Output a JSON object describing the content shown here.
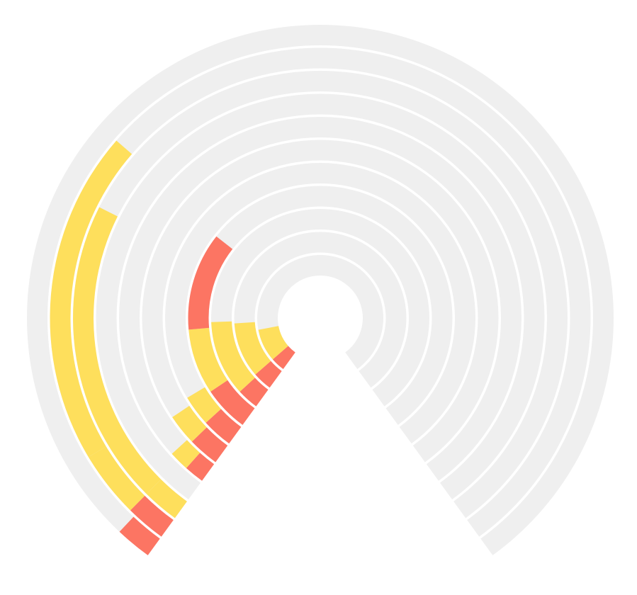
{
  "chart_data": {
    "type": "radial-bar",
    "angle_range_deg": [
      -144,
      144
    ],
    "max_value": 1,
    "colors": {
      "track": "#efefef",
      "series_a": "#fedf5c",
      "series_b": "#fc7563"
    },
    "rings": [
      {
        "segments": [
          {
            "value": 0.045,
            "color": "series_b"
          },
          {
            "value": 0.105,
            "color": "series_a"
          }
        ]
      },
      {
        "segments": [
          {
            "value": 0.045,
            "color": "series_b"
          },
          {
            "value": 0.13,
            "color": "series_a"
          }
        ]
      },
      {
        "segments": [
          {
            "value": 0.04,
            "color": "series_b"
          },
          {
            "value": 0.14,
            "color": "series_a"
          }
        ]
      },
      {
        "segments": [
          {
            "value": 0.07,
            "color": "series_b"
          },
          {
            "value": 0.1,
            "color": "series_a"
          },
          {
            "value": 0.15,
            "color": "series_b"
          }
        ]
      },
      {
        "segments": [
          {
            "value": 0.04,
            "color": "series_b"
          },
          {
            "value": 0.04,
            "color": "series_a"
          }
        ]
      },
      {
        "segments": [
          {
            "value": 0.035,
            "color": "series_b"
          },
          {
            "value": 0.035,
            "color": "series_a"
          }
        ]
      },
      {
        "segments": [
          {
            "value": 0.02,
            "color": "series_b"
          },
          {
            "value": 0.02,
            "color": "series_a"
          }
        ]
      },
      {
        "segments": [
          {
            "value": 0.0,
            "color": "series_b"
          },
          {
            "value": 0.0,
            "color": "series_a"
          }
        ]
      },
      {
        "segments": [
          {
            "value": 0.0,
            "color": "series_b"
          },
          {
            "value": 0.03,
            "color": "series_a"
          },
          {
            "value": 0.25,
            "color": "series_a"
          }
        ]
      },
      {
        "segments": [
          {
            "value": 0.03,
            "color": "series_b"
          },
          {
            "value": 0.05,
            "color": "series_a"
          },
          {
            "value": 0.25,
            "color": "series_a"
          }
        ]
      },
      {
        "segments": [
          {
            "value": 0.025,
            "color": "series_b"
          }
        ]
      }
    ]
  }
}
